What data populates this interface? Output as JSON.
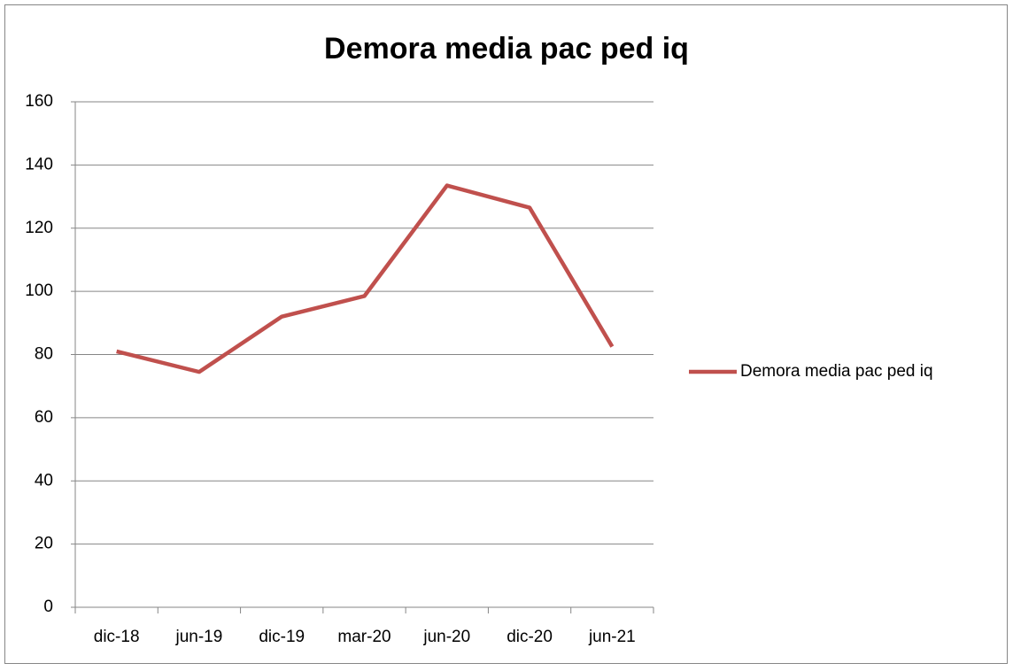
{
  "chart_data": {
    "type": "line",
    "title": "Demora media pac ped iq",
    "categories": [
      "dic-18",
      "jun-19",
      "dic-19",
      "mar-20",
      "jun-20",
      "dic-20",
      "jun-21"
    ],
    "series": [
      {
        "name": "Demora media pac ped iq",
        "color": "#c0504d",
        "values": [
          81,
          74.5,
          92,
          98.5,
          133.5,
          126.5,
          82.5
        ]
      }
    ],
    "ylim": [
      0,
      160
    ],
    "yticks": [
      0,
      20,
      40,
      60,
      80,
      100,
      120,
      140,
      160
    ],
    "grid": true,
    "legend": "right"
  }
}
